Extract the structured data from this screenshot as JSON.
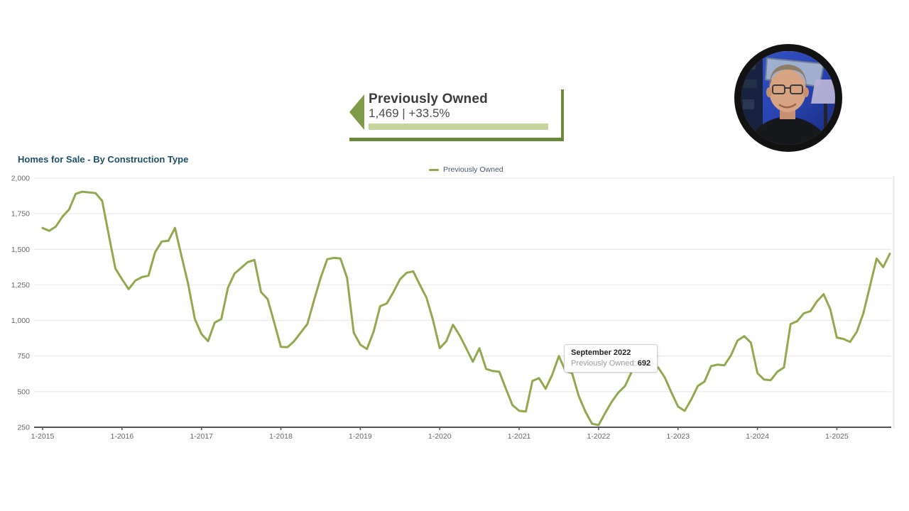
{
  "banner": {
    "title": "Previously Owned",
    "value": "1,469 | +33.5%",
    "arrow_color": "#7e9c46",
    "bar_color": "#c6d49e",
    "border_color": "#68883a"
  },
  "chart": {
    "title": "Homes for Sale - By Construction Type",
    "legend": {
      "label": "Previously Owned",
      "color": "#92a84f"
    }
  },
  "tooltip": {
    "title": "September 2022",
    "series_label": "Previously Owned:",
    "value": "692"
  },
  "chart_data": {
    "type": "line",
    "title": "Homes for Sale - By Construction Type",
    "ylabel": "",
    "xlabel": "",
    "ylim": [
      250,
      2000
    ],
    "y_ticks": [
      250,
      500,
      750,
      1000,
      1250,
      1500,
      1750,
      2000
    ],
    "x_ticks": [
      "1-2015",
      "1-2016",
      "1-2017",
      "1-2018",
      "1-2019",
      "1-2020",
      "1-2021",
      "1-2022",
      "1-2023",
      "1-2024",
      "1-2025"
    ],
    "grid": "horizontal",
    "legend_position": "top-center",
    "x_start": "2015-01",
    "x_interval": "month",
    "series": [
      {
        "name": "Previously Owned",
        "color": "#92a84f",
        "values": [
          1650,
          1630,
          1660,
          1730,
          1780,
          1890,
          1905,
          1900,
          1895,
          1840,
          1600,
          1365,
          1290,
          1220,
          1280,
          1305,
          1315,
          1480,
          1555,
          1560,
          1650,
          1450,
          1255,
          1010,
          905,
          855,
          985,
          1010,
          1230,
          1330,
          1370,
          1410,
          1425,
          1200,
          1150,
          985,
          815,
          813,
          855,
          915,
          975,
          1140,
          1300,
          1430,
          1440,
          1435,
          1300,
          915,
          830,
          800,
          920,
          1100,
          1120,
          1200,
          1290,
          1335,
          1345,
          1250,
          1160,
          1000,
          805,
          855,
          970,
          895,
          805,
          710,
          805,
          660,
          645,
          640,
          520,
          405,
          365,
          360,
          575,
          595,
          520,
          620,
          750,
          645,
          630,
          470,
          360,
          275,
          265,
          350,
          430,
          495,
          540,
          640,
          660,
          675,
          692,
          670,
          600,
          495,
          395,
          365,
          445,
          540,
          570,
          680,
          690,
          685,
          755,
          860,
          890,
          845,
          630,
          585,
          580,
          640,
          670,
          975,
          995,
          1050,
          1065,
          1135,
          1185,
          1080,
          880,
          870,
          850,
          920,
          1050,
          1240,
          1435,
          1375,
          1469
        ]
      }
    ],
    "highlight": {
      "month": "2022-09",
      "index": 92,
      "value": 692,
      "label": "September 2022"
    }
  }
}
